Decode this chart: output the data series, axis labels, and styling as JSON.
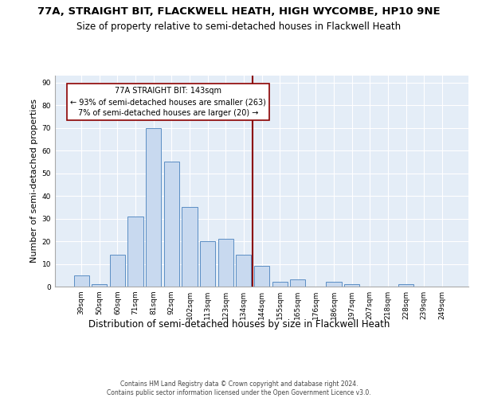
{
  "title": "77A, STRAIGHT BIT, FLACKWELL HEATH, HIGH WYCOMBE, HP10 9NE",
  "subtitle": "Size of property relative to semi-detached houses in Flackwell Heath",
  "xlabel": "Distribution of semi-detached houses by size in Flackwell Heath",
  "ylabel": "Number of semi-detached properties",
  "categories": [
    "39sqm",
    "50sqm",
    "60sqm",
    "71sqm",
    "81sqm",
    "92sqm",
    "102sqm",
    "113sqm",
    "123sqm",
    "134sqm",
    "144sqm",
    "155sqm",
    "165sqm",
    "176sqm",
    "186sqm",
    "197sqm",
    "207sqm",
    "218sqm",
    "228sqm",
    "239sqm",
    "249sqm"
  ],
  "values": [
    5,
    1,
    14,
    31,
    70,
    55,
    35,
    20,
    21,
    14,
    9,
    2,
    3,
    0,
    2,
    1,
    0,
    0,
    1,
    0,
    0
  ],
  "bar_color": "#c8d9ef",
  "bar_edge_color": "#5b8ec4",
  "vline_index": 9.5,
  "annotation_text_line1": "77A STRAIGHT BIT: 143sqm",
  "annotation_text_line2": "← 93% of semi-detached houses are smaller (263)",
  "annotation_text_line3": "7% of semi-detached houses are larger (20) →",
  "ylim": [
    0,
    93
  ],
  "yticks": [
    0,
    10,
    20,
    30,
    40,
    50,
    60,
    70,
    80,
    90
  ],
  "plot_bg_color": "#e4edf7",
  "grid_color": "#ffffff",
  "footer_line1": "Contains HM Land Registry data © Crown copyright and database right 2024.",
  "footer_line2": "Contains public sector information licensed under the Open Government Licence v3.0.",
  "title_fontsize": 9.5,
  "subtitle_fontsize": 8.5,
  "xlabel_fontsize": 8.5,
  "ylabel_fontsize": 8,
  "tick_fontsize": 6.5,
  "annot_fontsize": 7,
  "footer_fontsize": 5.5
}
